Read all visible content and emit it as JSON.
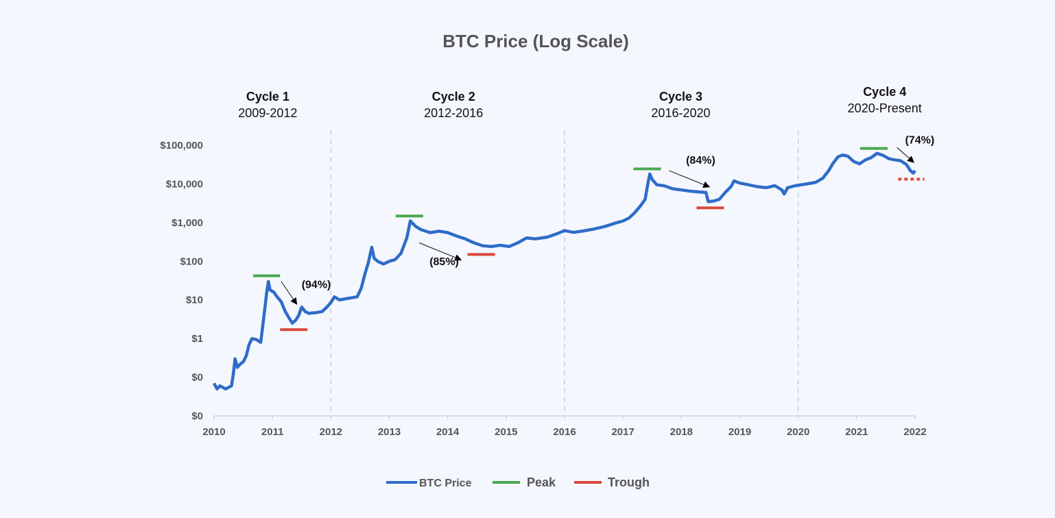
{
  "chart_data": {
    "type": "line",
    "title": "BTC Price (Log Scale)",
    "xlabel": "",
    "ylabel": "",
    "y_scale": "log",
    "xlim": [
      2010,
      2022
    ],
    "ylim": [
      0.01,
      100000
    ],
    "x_ticks": [
      "2010",
      "2011",
      "2012",
      "2013",
      "2014",
      "2015",
      "2016",
      "2017",
      "2018",
      "2019",
      "2020",
      "2021",
      "2022"
    ],
    "y_ticks": [
      {
        "value": 0.01,
        "label": "$0"
      },
      {
        "value": 0.1,
        "label": "$0"
      },
      {
        "value": 1,
        "label": "$1"
      },
      {
        "value": 10,
        "label": "$10"
      },
      {
        "value": 100,
        "label": "$100"
      },
      {
        "value": 1000,
        "label": "$1,000"
      },
      {
        "value": 10000,
        "label": "$10,000"
      },
      {
        "value": 100000,
        "label": "$100,000"
      }
    ],
    "grid": false,
    "cycle_dividers": [
      2012,
      2016,
      2020
    ],
    "cycles": [
      {
        "name": "Cycle 1",
        "years": "2009-2012",
        "center": 2010.92
      },
      {
        "name": "Cycle 2",
        "years": "2012-2016",
        "center": 2014.1
      },
      {
        "name": "Cycle 3",
        "years": "2016-2020",
        "center": 2017.99
      },
      {
        "name": "Cycle 4",
        "years": "2020-Present",
        "center": 2021.48
      }
    ],
    "series": [
      {
        "name": "BTC Price",
        "color": "#2f6cc7",
        "points": [
          [
            2010.0,
            0.07
          ],
          [
            2010.05,
            0.05
          ],
          [
            2010.1,
            0.06
          ],
          [
            2010.2,
            0.05
          ],
          [
            2010.3,
            0.06
          ],
          [
            2010.33,
            0.12
          ],
          [
            2010.36,
            0.3
          ],
          [
            2010.4,
            0.18
          ],
          [
            2010.45,
            0.22
          ],
          [
            2010.5,
            0.25
          ],
          [
            2010.55,
            0.35
          ],
          [
            2010.6,
            0.7
          ],
          [
            2010.65,
            1.0
          ],
          [
            2010.72,
            0.95
          ],
          [
            2010.8,
            0.8
          ],
          [
            2010.84,
            2.5
          ],
          [
            2010.87,
            6
          ],
          [
            2010.9,
            15
          ],
          [
            2010.93,
            30
          ],
          [
            2010.96,
            18
          ],
          [
            2011.02,
            16
          ],
          [
            2011.08,
            12
          ],
          [
            2011.15,
            9
          ],
          [
            2011.22,
            5
          ],
          [
            2011.28,
            3.5
          ],
          [
            2011.34,
            2.5
          ],
          [
            2011.4,
            3
          ],
          [
            2011.45,
            4
          ],
          [
            2011.5,
            6.5
          ],
          [
            2011.56,
            5
          ],
          [
            2011.62,
            4.5
          ],
          [
            2011.75,
            4.7
          ],
          [
            2011.85,
            5
          ],
          [
            2011.93,
            6.5
          ],
          [
            2012.0,
            8.5
          ],
          [
            2012.06,
            12
          ],
          [
            2012.15,
            10
          ],
          [
            2012.3,
            11
          ],
          [
            2012.45,
            12
          ],
          [
            2012.52,
            20
          ],
          [
            2012.58,
            45
          ],
          [
            2012.64,
            90
          ],
          [
            2012.7,
            230
          ],
          [
            2012.74,
            120
          ],
          [
            2012.8,
            100
          ],
          [
            2012.9,
            85
          ],
          [
            2013.0,
            100
          ],
          [
            2013.1,
            110
          ],
          [
            2013.2,
            160
          ],
          [
            2013.3,
            400
          ],
          [
            2013.36,
            1100
          ],
          [
            2013.45,
            800
          ],
          [
            2013.55,
            650
          ],
          [
            2013.7,
            550
          ],
          [
            2013.85,
            600
          ],
          [
            2014.0,
            550
          ],
          [
            2014.15,
            450
          ],
          [
            2014.3,
            380
          ],
          [
            2014.45,
            300
          ],
          [
            2014.6,
            250
          ],
          [
            2014.75,
            240
          ],
          [
            2014.9,
            260
          ],
          [
            2015.05,
            240
          ],
          [
            2015.2,
            300
          ],
          [
            2015.35,
            400
          ],
          [
            2015.5,
            380
          ],
          [
            2015.7,
            420
          ],
          [
            2015.85,
            500
          ],
          [
            2016.0,
            620
          ],
          [
            2016.15,
            560
          ],
          [
            2016.3,
            600
          ],
          [
            2016.5,
            680
          ],
          [
            2016.7,
            800
          ],
          [
            2016.85,
            950
          ],
          [
            2017.0,
            1100
          ],
          [
            2017.1,
            1300
          ],
          [
            2017.2,
            1800
          ],
          [
            2017.3,
            2700
          ],
          [
            2017.38,
            4000
          ],
          [
            2017.42,
            9000
          ],
          [
            2017.46,
            18000
          ],
          [
            2017.5,
            13000
          ],
          [
            2017.58,
            9500
          ],
          [
            2017.7,
            9000
          ],
          [
            2017.85,
            7500
          ],
          [
            2018.0,
            7000
          ],
          [
            2018.15,
            6500
          ],
          [
            2018.3,
            6200
          ],
          [
            2018.42,
            6000
          ],
          [
            2018.46,
            3500
          ],
          [
            2018.55,
            3600
          ],
          [
            2018.65,
            4000
          ],
          [
            2018.75,
            6000
          ],
          [
            2018.85,
            8500
          ],
          [
            2018.9,
            12000
          ],
          [
            2019.0,
            10500
          ],
          [
            2019.15,
            9500
          ],
          [
            2019.3,
            8500
          ],
          [
            2019.45,
            8000
          ],
          [
            2019.6,
            9000
          ],
          [
            2019.72,
            7000
          ],
          [
            2019.76,
            5500
          ],
          [
            2019.82,
            8000
          ],
          [
            2019.95,
            9000
          ],
          [
            2020.05,
            9500
          ],
          [
            2020.15,
            10000
          ],
          [
            2020.3,
            11000
          ],
          [
            2020.42,
            14000
          ],
          [
            2020.52,
            22000
          ],
          [
            2020.6,
            35000
          ],
          [
            2020.68,
            50000
          ],
          [
            2020.76,
            56000
          ],
          [
            2020.85,
            52000
          ],
          [
            2020.95,
            38000
          ],
          [
            2021.05,
            33000
          ],
          [
            2021.15,
            42000
          ],
          [
            2021.25,
            48000
          ],
          [
            2021.35,
            62000
          ],
          [
            2021.45,
            55000
          ],
          [
            2021.55,
            45000
          ],
          [
            2021.65,
            42000
          ],
          [
            2021.75,
            40000
          ],
          [
            2021.85,
            32000
          ],
          [
            2021.92,
            22000
          ],
          [
            2021.97,
            19000
          ],
          [
            2022.0,
            22000
          ]
        ]
      }
    ],
    "peaks": [
      {
        "x": [
          2010.67,
          2011.13
        ],
        "price": 42
      },
      {
        "x": [
          2013.11,
          2013.58
        ],
        "price": 1480
      },
      {
        "x": [
          2017.18,
          2017.65
        ],
        "price": 24500
      },
      {
        "x": [
          2021.06,
          2021.53
        ],
        "price": 83000
      }
    ],
    "troughs": [
      {
        "x": [
          2011.13,
          2011.6
        ],
        "price": 1.7,
        "style": "solid"
      },
      {
        "x": [
          2014.34,
          2014.81
        ],
        "price": 150,
        "style": "solid"
      },
      {
        "x": [
          2018.26,
          2018.73
        ],
        "price": 2400,
        "style": "solid"
      },
      {
        "x": [
          2021.71,
          2022.16
        ],
        "price": 13300,
        "style": "dotted"
      }
    ],
    "annotations": [
      {
        "text": "(94%)",
        "arrow_from": [
          2011.15,
          30
        ],
        "arrow_to": [
          2011.41,
          8
        ],
        "label_at": [
          2011.75,
          20
        ]
      },
      {
        "text": "(85%)",
        "arrow_from": [
          2013.51,
          300
        ],
        "arrow_to": [
          2014.22,
          110
        ],
        "label_at": [
          2013.94,
          80
        ]
      },
      {
        "text": "(84%)",
        "arrow_from": [
          2017.79,
          22000
        ],
        "arrow_to": [
          2018.47,
          8500
        ],
        "label_at": [
          2018.33,
          33000
        ]
      },
      {
        "text": "(74%)",
        "arrow_from": [
          2021.69,
          88000
        ],
        "arrow_to": [
          2021.97,
          37000
        ],
        "label_at": [
          2022.08,
          110000
        ]
      }
    ],
    "legend": {
      "placement": "bottom-center",
      "entries": [
        {
          "label": "BTC Price",
          "color": "#2f6cc7"
        },
        {
          "label": "Peak",
          "color": "#4aa84f"
        },
        {
          "label": "Trough",
          "color": "#d9483b"
        }
      ]
    },
    "colors": {
      "peak": "#4aa84f",
      "trough": "#d9483b",
      "divider": "#c8ccd4",
      "axis": "#cfd3da"
    }
  }
}
